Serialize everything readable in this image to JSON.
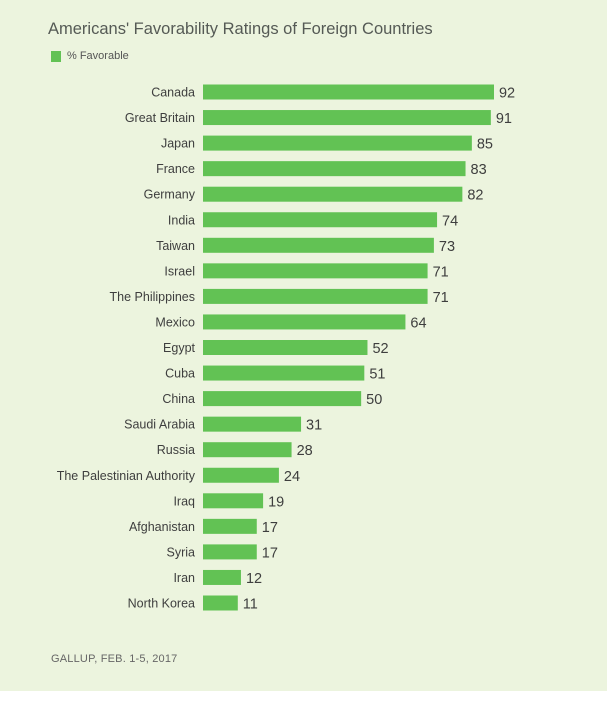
{
  "chart_data": {
    "type": "bar",
    "orientation": "horizontal",
    "title": "Americans' Favorability Ratings of Foreign Countries",
    "legend": [
      {
        "label": "% Favorable",
        "color": "#62c254"
      }
    ],
    "legend_position": "top-left",
    "categories": [
      "Canada",
      "Great Britain",
      "Japan",
      "France",
      "Germany",
      "India",
      "Taiwan",
      "Israel",
      "The Philippines",
      "Mexico",
      "Egypt",
      "Cuba",
      "China",
      "Saudi Arabia",
      "Russia",
      "The Palestinian Authority",
      "Iraq",
      "Afghanistan",
      "Syria",
      "Iran",
      "North Korea"
    ],
    "series": [
      {
        "name": "% Favorable",
        "values": [
          92,
          91,
          85,
          83,
          82,
          74,
          73,
          71,
          71,
          64,
          52,
          51,
          50,
          31,
          28,
          24,
          19,
          17,
          17,
          12,
          11
        ]
      }
    ],
    "xlim": [
      0,
      100
    ],
    "grid": false,
    "xlabel": "",
    "ylabel": "",
    "source": "GALLUP, FEB. 1-5, 2017"
  },
  "colors": {
    "bar": "#62c254",
    "background": "#ecf4de"
  }
}
